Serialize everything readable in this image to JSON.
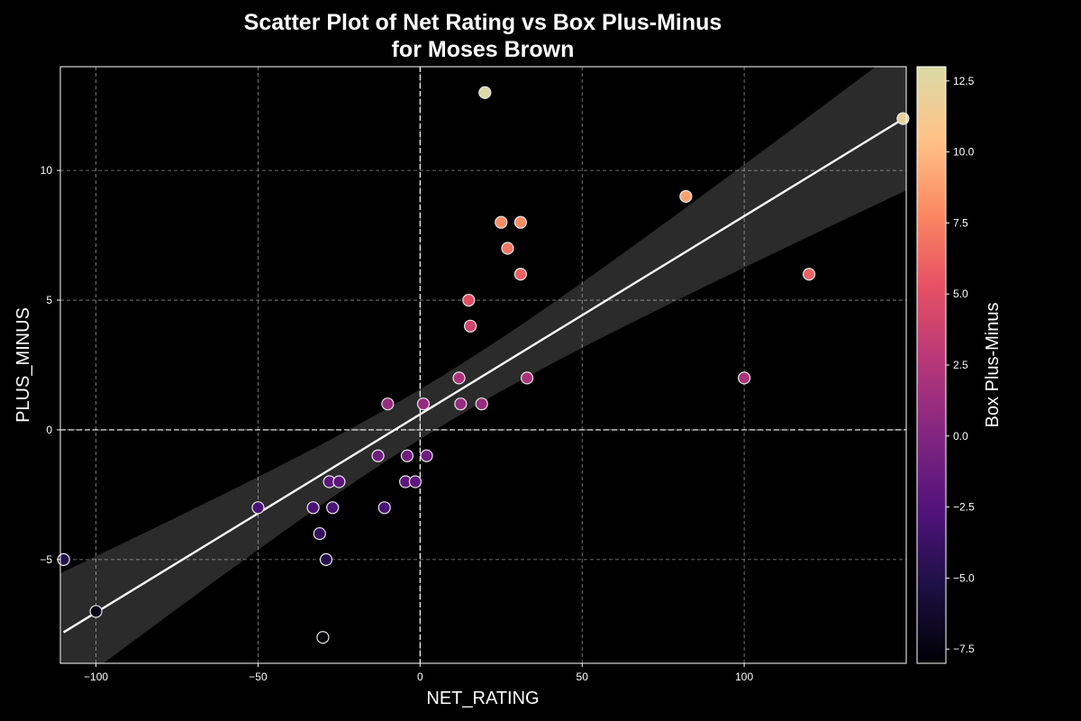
{
  "chart_data": {
    "type": "scatter",
    "title_line1": "Scatter Plot of Net Rating vs Box Plus-Minus",
    "title_line2": "for Moses Brown",
    "xlabel": "NET_RATING",
    "ylabel": "PLUS_MINUS",
    "colorbar_label": "Box Plus-Minus",
    "xlim": [
      -111,
      150
    ],
    "ylim": [
      -9,
      14
    ],
    "x_ticks": [
      -100,
      -50,
      0,
      50,
      100
    ],
    "x_tick_labels": [
      "−100",
      "−50",
      "0",
      "50",
      "100"
    ],
    "y_ticks": [
      -5,
      0,
      5,
      10
    ],
    "y_tick_labels": [
      "−5",
      "0",
      "5",
      "10"
    ],
    "colorbar_range": [
      -8,
      13
    ],
    "colorbar_ticks": [
      -7.5,
      -5.0,
      -2.5,
      0.0,
      2.5,
      5.0,
      7.5,
      10.0,
      12.5
    ],
    "colorbar_tick_labels": [
      "−7.5",
      "−5.0",
      "−2.5",
      "0.0",
      "2.5",
      "5.0",
      "7.5",
      "10.0",
      "12.5"
    ],
    "grid": true,
    "reference_lines": {
      "x": 0,
      "y": 0
    },
    "regression": {
      "slope": 0.0764,
      "intercept": 0.6,
      "x_range": [
        -110,
        149
      ]
    },
    "points": [
      {
        "x": -110,
        "y": -5
      },
      {
        "x": -100,
        "y": -7
      },
      {
        "x": -50,
        "y": -3
      },
      {
        "x": -33,
        "y": -3
      },
      {
        "x": -31,
        "y": -4
      },
      {
        "x": -30,
        "y": -8
      },
      {
        "x": -29,
        "y": -5
      },
      {
        "x": -28,
        "y": -2
      },
      {
        "x": -27,
        "y": -3
      },
      {
        "x": -25,
        "y": -2
      },
      {
        "x": -13,
        "y": -1
      },
      {
        "x": -11,
        "y": -3
      },
      {
        "x": -10,
        "y": 1
      },
      {
        "x": -4.5,
        "y": -2
      },
      {
        "x": -4,
        "y": -1
      },
      {
        "x": -1.5,
        "y": -2
      },
      {
        "x": 1,
        "y": 1
      },
      {
        "x": 2,
        "y": -1
      },
      {
        "x": 12,
        "y": 2
      },
      {
        "x": 12.5,
        "y": 1
      },
      {
        "x": 15,
        "y": 5
      },
      {
        "x": 15.5,
        "y": 4
      },
      {
        "x": 19,
        "y": 1
      },
      {
        "x": 20,
        "y": 13
      },
      {
        "x": 25,
        "y": 8
      },
      {
        "x": 27,
        "y": 7
      },
      {
        "x": 31,
        "y": 6
      },
      {
        "x": 31,
        "y": 8
      },
      {
        "x": 33,
        "y": 2
      },
      {
        "x": 82,
        "y": 9
      },
      {
        "x": 100,
        "y": 2
      },
      {
        "x": 120,
        "y": 6
      },
      {
        "x": 149,
        "y": 12
      }
    ]
  }
}
